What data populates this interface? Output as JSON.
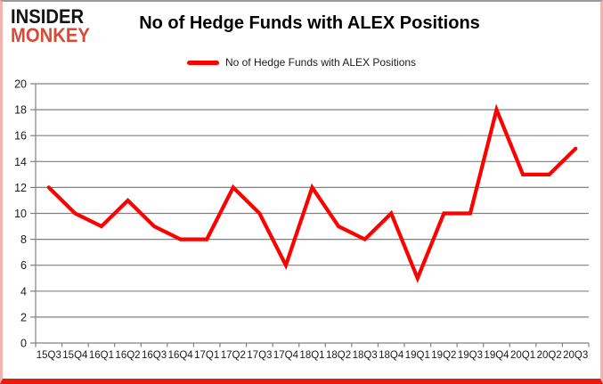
{
  "logo": {
    "line1": "INSIDER",
    "line2": "MONKEY"
  },
  "header": {
    "title": "No of Hedge Funds with ALEX Positions"
  },
  "legend": {
    "label": "No of Hedge Funds with ALEX Positions"
  },
  "colors": {
    "series": "#fe0000",
    "grid": "#808080",
    "axis_text": "#1a1a1a",
    "logo_black": "#141414",
    "logo_red": "#d84a35",
    "frame_pink": "#efb4b0",
    "frame_red": "#ec1a0e"
  },
  "chart_data": {
    "type": "line",
    "title": "No of Hedge Funds with ALEX Positions",
    "categories": [
      "15Q3",
      "15Q4",
      "16Q1",
      "16Q2",
      "16Q3",
      "16Q4",
      "17Q1",
      "17Q2",
      "17Q3",
      "17Q4",
      "18Q1",
      "18Q2",
      "18Q3",
      "18Q4",
      "19Q1",
      "19Q2",
      "19Q3",
      "19Q4",
      "20Q1",
      "20Q2",
      "20Q3"
    ],
    "series": [
      {
        "name": "No of Hedge Funds with ALEX Positions",
        "values": [
          12,
          10,
          9,
          11,
          9,
          8,
          8,
          12,
          10,
          6,
          12,
          9,
          8,
          10,
          5,
          10,
          10,
          18,
          13,
          13,
          15
        ]
      }
    ],
    "xlabel": "",
    "ylabel": "",
    "ylim": [
      0,
      20
    ],
    "ytick_step": 2,
    "grid": true,
    "legend_position": "top"
  }
}
